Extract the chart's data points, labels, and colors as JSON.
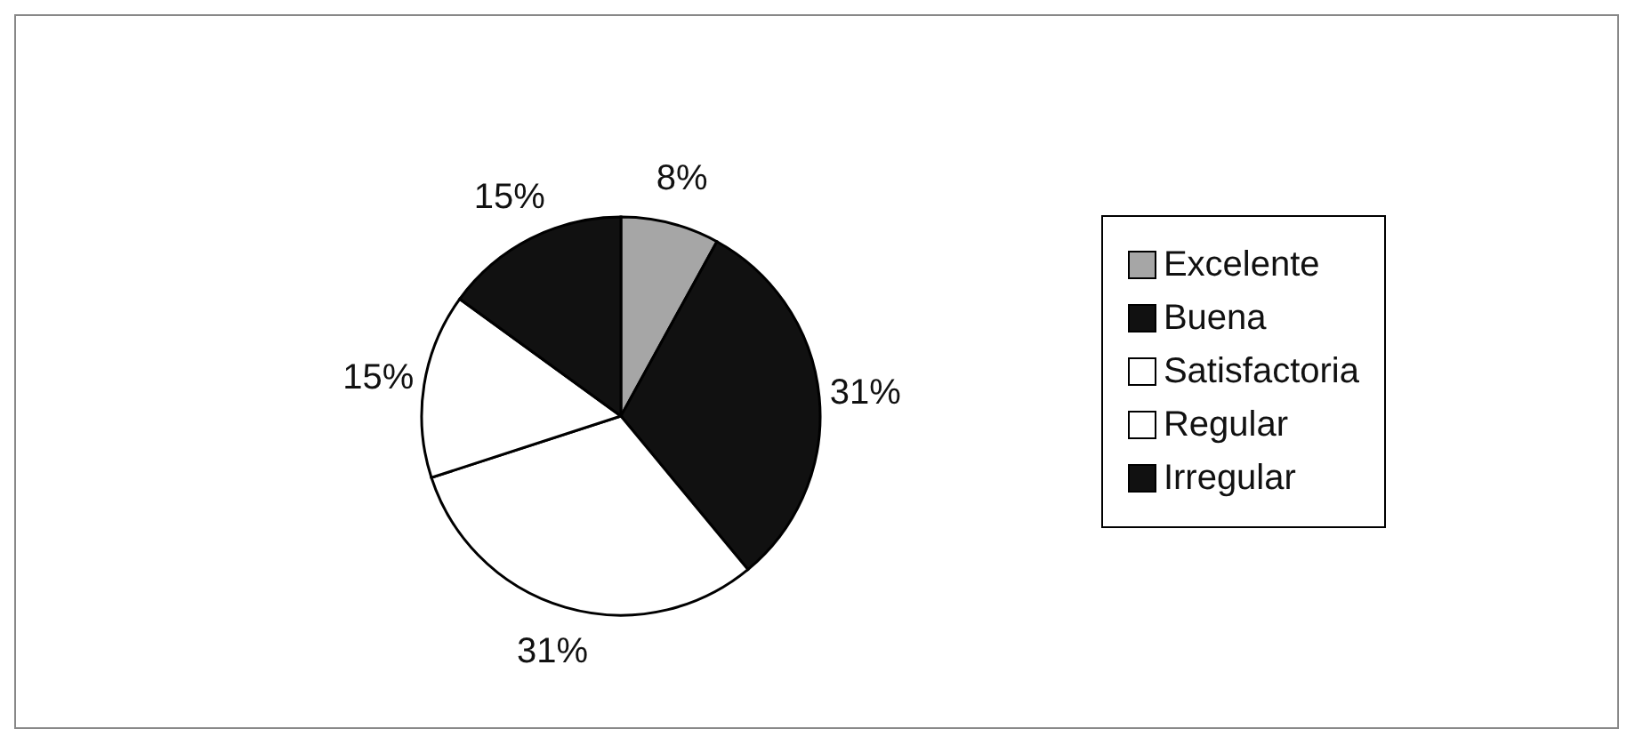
{
  "chart_data": {
    "type": "pie",
    "categories": [
      "Excelente",
      "Buena",
      "Satisfactoria",
      "Regular",
      "Irregular"
    ],
    "values": [
      8,
      31,
      31,
      15,
      15
    ],
    "colors": [
      "#a6a6a6",
      "#111111",
      "#ffffff",
      "#ffffff",
      "#111111"
    ],
    "value_labels": [
      "8%",
      "31%",
      "31%",
      "15%",
      "15%"
    ],
    "legend": "right"
  }
}
